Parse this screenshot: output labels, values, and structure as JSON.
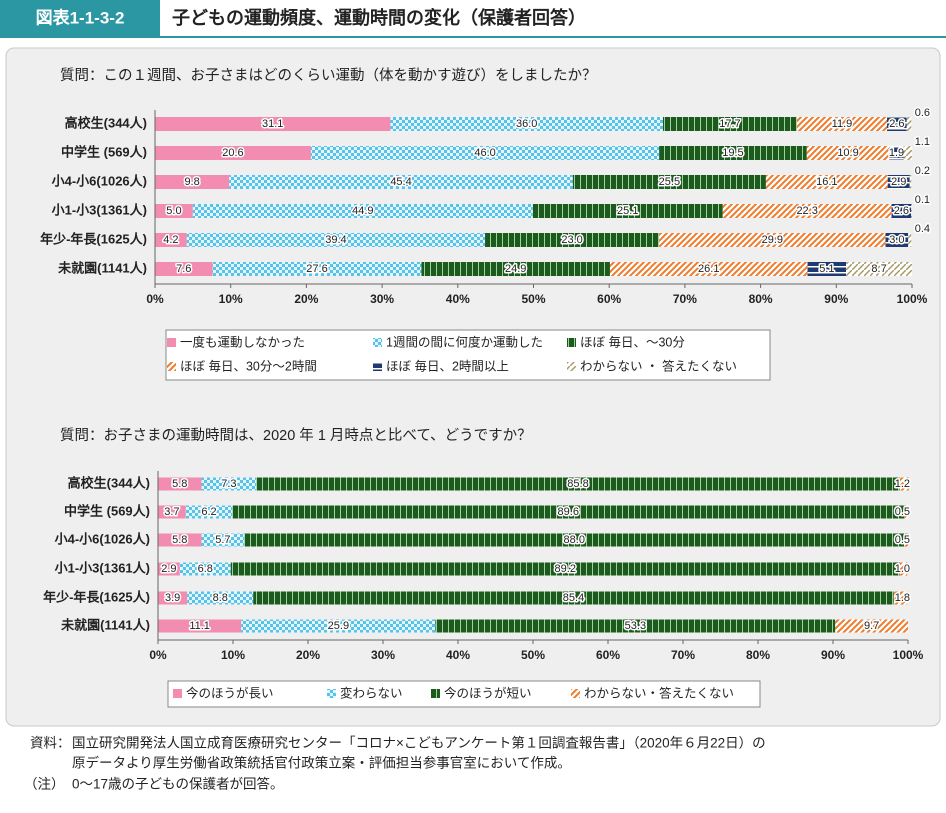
{
  "header": {
    "label": "図表1-1-3-2",
    "title": "子どもの運動頻度、運動時間の変化（保護者回答）"
  },
  "chart_data": [
    {
      "type": "bar",
      "orientation": "horizontal",
      "stacked": true,
      "title": "質問：この１週間、お子さまはどのくらい運動（体を動かす遊び）をしましたか？",
      "categories": [
        "高校生(344人)",
        "中学生 (569人)",
        "小4-小6(1026人)",
        "小1-小3(1361人)",
        "年少-年長(1625人)",
        "未就園(1141人)"
      ],
      "series": [
        {
          "name": "一度も運動しなかった",
          "color": "#f28cb1",
          "pattern": "solid",
          "values": [
            31.1,
            20.6,
            9.8,
            5.0,
            4.2,
            7.6
          ],
          "value_labels": [
            "31.1",
            "20.6",
            "9.8",
            "5.0",
            "4.2",
            "7.6"
          ]
        },
        {
          "name": "1週間の間に何度か運動した",
          "color": "#58c3ea",
          "pattern": "checker",
          "values": [
            36.0,
            46.0,
            45.4,
            44.9,
            39.4,
            27.6
          ],
          "value_labels": [
            "36.0",
            "46.0",
            "45.4",
            "44.9",
            "39.4",
            "27.6"
          ]
        },
        {
          "name": "ほぼ 毎日、～30分",
          "color": "#1d5a1d",
          "pattern": "vstripe",
          "values": [
            17.7,
            19.5,
            25.5,
            25.1,
            23.0,
            24.9
          ],
          "value_labels": [
            "17.7",
            "19.5",
            "25.5",
            "25.1",
            "23.0",
            "24.9"
          ]
        },
        {
          "name": "ほぼ 毎日、30分～2時間",
          "color": "#ef7a2a",
          "pattern": "hatch",
          "values": [
            11.9,
            10.9,
            16.1,
            22.3,
            29.9,
            26.1
          ]
        },
        {
          "name": "ほぼ 毎日、2時間以上",
          "color": "#1f3a70",
          "pattern": "hstripe",
          "values": [
            2.6,
            1.9,
            2.9,
            2.6,
            3.0,
            5.1
          ],
          "value_labels": [
            "2.6",
            "1.9",
            "2.9",
            "2.6",
            "3.0",
            "5.1"
          ]
        },
        {
          "name": "わからない ・ 答えたくない",
          "color": "#a89a66",
          "pattern": "dots",
          "values": [
            0.6,
            1.1,
            0.2,
            0.1,
            0.4,
            8.7
          ]
        }
      ],
      "xlim": [
        0,
        100
      ],
      "xticks": [
        {
          "value": 0,
          "label": "0%"
        },
        {
          "value": 10,
          "label": "10%"
        },
        {
          "value": 20,
          "label": "20%"
        },
        {
          "value": 30,
          "label": "30%"
        },
        {
          "value": 40,
          "label": "40%"
        },
        {
          "value": 50,
          "label": "50%"
        },
        {
          "value": 60,
          "label": "60%"
        },
        {
          "value": 70,
          "label": "70%"
        },
        {
          "value": 80,
          "label": "80%"
        },
        {
          "value": 90,
          "label": "90%"
        },
        {
          "value": 100,
          "label": "100%"
        }
      ]
    },
    {
      "type": "bar",
      "orientation": "horizontal",
      "stacked": true,
      "title": "質問：お子さまの運動時間は、2020 年 1 月時点と比べて、どうですか？",
      "categories": [
        "高校生(344人)",
        "中学生 (569人)",
        "小4-小6(1026人)",
        "小1-小3(1361人)",
        "年少-年長(1625人)",
        "未就園(1141人)"
      ],
      "series": [
        {
          "name": "今のほうが長い",
          "color": "#f28cb1",
          "pattern": "solid",
          "values": [
            5.8,
            3.7,
            5.8,
            2.9,
            3.9,
            11.1
          ]
        },
        {
          "name": "変わらない",
          "color": "#58c3ea",
          "pattern": "checker",
          "values": [
            7.3,
            6.2,
            5.7,
            6.8,
            8.8,
            25.9
          ]
        },
        {
          "name": "今のほうが短い",
          "color": "#1d5a1d",
          "pattern": "vstripe",
          "values": [
            85.8,
            89.6,
            88.0,
            89.2,
            85.4,
            53.3
          ],
          "value_labels": [
            "85.8",
            "89.6",
            "88.0",
            "89.2",
            "85.4",
            "53.3"
          ]
        },
        {
          "name": "わからない・答えたくない",
          "color": "#ef7a2a",
          "pattern": "hatch",
          "values": [
            1.2,
            0.5,
            0.5,
            1.0,
            1.8,
            9.7
          ],
          "value_labels": [
            "1.2",
            "0.5",
            "0.5",
            "1.0",
            "1.8",
            "9.7"
          ]
        }
      ],
      "xlim": [
        0,
        100
      ],
      "xticks": [
        {
          "value": 0,
          "label": "0%"
        },
        {
          "value": 10,
          "label": "10%"
        },
        {
          "value": 20,
          "label": "20%"
        },
        {
          "value": 30,
          "label": "30%"
        },
        {
          "value": 40,
          "label": "40%"
        },
        {
          "value": 50,
          "label": "50%"
        },
        {
          "value": 60,
          "label": "60%"
        },
        {
          "value": 70,
          "label": "70%"
        },
        {
          "value": 80,
          "label": "80%"
        },
        {
          "value": 90,
          "label": "90%"
        },
        {
          "value": 100,
          "label": "100%"
        }
      ]
    }
  ],
  "notes": {
    "source_label": "資料：",
    "source": [
      "国立研究開発法人国立成育医療研究センター「コロナ×こどもアンケート第１回調査報告書」（2020年６月22日）の",
      "原データより厚生労働省政策統括官付政策立案・評価担当参事官室において作成。"
    ],
    "note_label": "（注）",
    "note": "0～17歳の子どもの保護者が回答。"
  }
}
